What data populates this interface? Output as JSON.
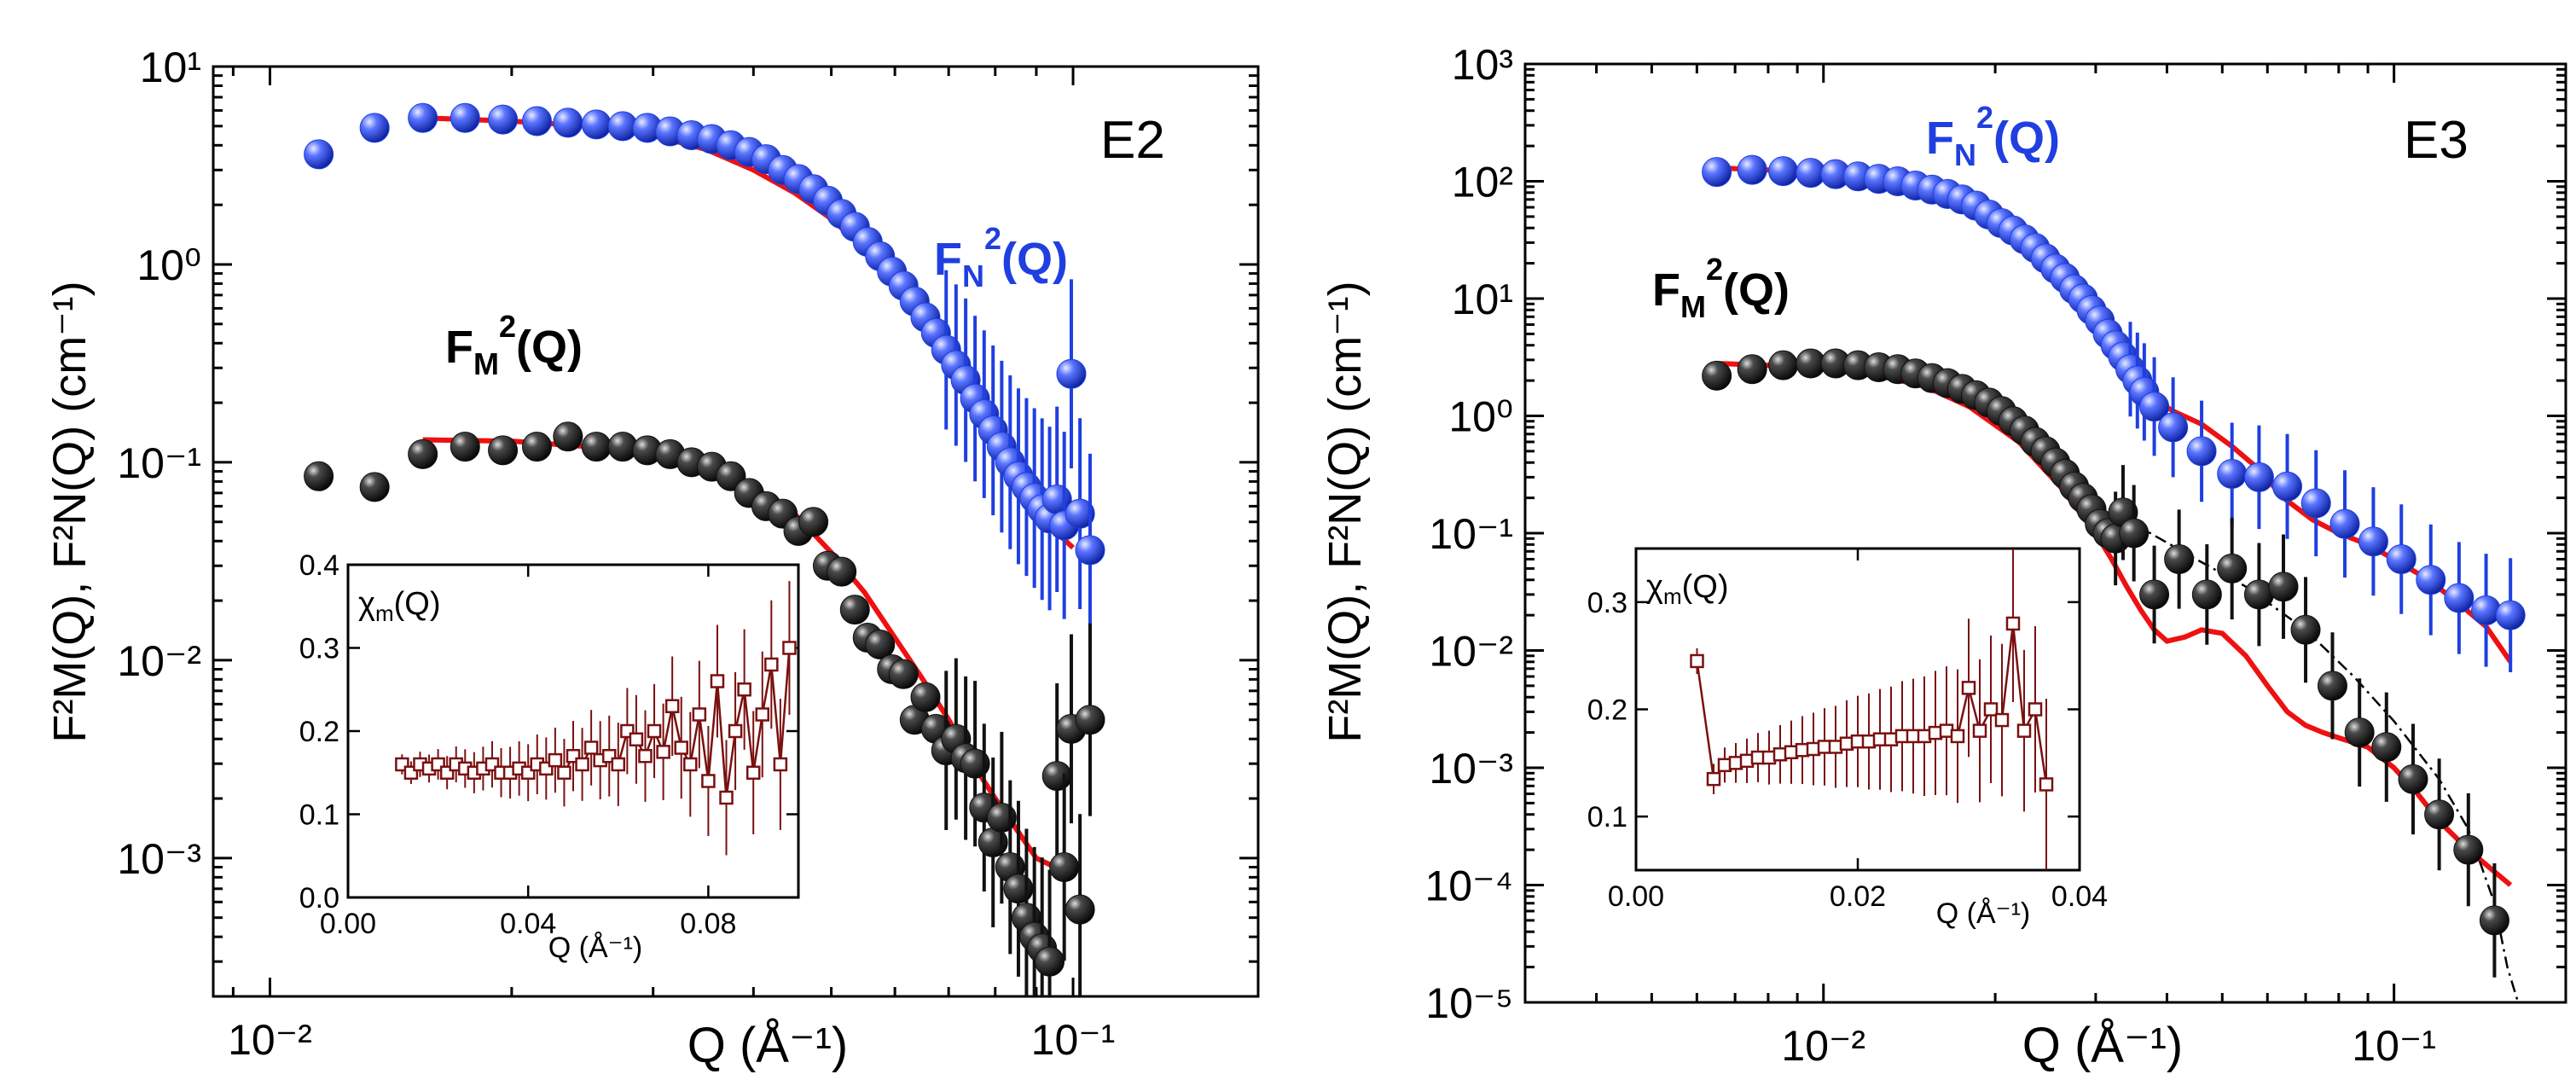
{
  "chart_data": [
    {
      "type": "scatter",
      "panel_label": "E2",
      "xlabel": "Q (Å⁻¹)",
      "ylabel": "F²M(Q), F²N(Q)  (cm⁻¹)",
      "xscale": "log",
      "yscale": "log",
      "xlim": [
        0.0085,
        0.17
      ],
      "ylim": [
        0.0002,
        10
      ],
      "x_ticks": [
        {
          "value": 0.01,
          "label": "10⁻²"
        },
        {
          "value": 0.1,
          "label": "10⁻¹"
        }
      ],
      "y_ticks": [
        {
          "value": 10,
          "label": "10¹"
        },
        {
          "value": 1,
          "label": "10⁰"
        },
        {
          "value": 0.1,
          "label": "10⁻¹"
        },
        {
          "value": 0.01,
          "label": "10⁻²"
        },
        {
          "value": 0.001,
          "label": "10⁻³"
        }
      ],
      "series": [
        {
          "name": "FN²(Q)",
          "label_main": "F",
          "label_sub": "N",
          "label_sup": "2",
          "label_tail": "(Q)",
          "color": "#1f3fe0",
          "marker": "sphere",
          "x": [
            0.0115,
            0.0135,
            0.0155,
            0.0175,
            0.0195,
            0.0215,
            0.0235,
            0.0255,
            0.0275,
            0.0295,
            0.0315,
            0.0335,
            0.0355,
            0.0375,
            0.0395,
            0.0415,
            0.0435,
            0.0455,
            0.0475,
            0.0495,
            0.0515,
            0.0535,
            0.0555,
            0.0575,
            0.0595,
            0.0615,
            0.0635,
            0.0655,
            0.0675,
            0.0695,
            0.0715,
            0.0735,
            0.0755,
            0.0775,
            0.0795,
            0.0815,
            0.0835,
            0.0855,
            0.0875,
            0.0895,
            0.0915,
            0.0935,
            0.0955,
            0.0975,
            0.0995,
            0.102,
            0.105
          ],
          "y": [
            3.6,
            4.9,
            5.5,
            5.5,
            5.4,
            5.3,
            5.2,
            5.1,
            5.0,
            4.9,
            4.7,
            4.5,
            4.3,
            4.0,
            3.7,
            3.4,
            3.0,
            2.7,
            2.4,
            2.1,
            1.8,
            1.55,
            1.3,
            1.1,
            0.92,
            0.78,
            0.65,
            0.54,
            0.45,
            0.37,
            0.31,
            0.26,
            0.21,
            0.175,
            0.145,
            0.12,
            0.1,
            0.085,
            0.075,
            0.066,
            0.058,
            0.052,
            0.065,
            0.048,
            0.28,
            0.055,
            0.036
          ]
        },
        {
          "name": "FM²(Q)",
          "label_main": "F",
          "label_sub": "M",
          "label_sup": "2",
          "label_tail": "(Q)",
          "color": "#111111",
          "marker": "sphere",
          "x": [
            0.0115,
            0.0135,
            0.0155,
            0.0175,
            0.0195,
            0.0215,
            0.0235,
            0.0255,
            0.0275,
            0.0295,
            0.0315,
            0.0335,
            0.0355,
            0.0375,
            0.0395,
            0.0415,
            0.0435,
            0.0455,
            0.0475,
            0.0495,
            0.0515,
            0.0535,
            0.0555,
            0.0575,
            0.0595,
            0.0615,
            0.0635,
            0.0655,
            0.0675,
            0.0695,
            0.0715,
            0.0735,
            0.0755,
            0.0775,
            0.0795,
            0.0815,
            0.0835,
            0.0855,
            0.0875,
            0.0895,
            0.0915,
            0.0935,
            0.0955,
            0.0975,
            0.0995,
            0.102,
            0.105
          ],
          "y": [
            0.085,
            0.075,
            0.11,
            0.12,
            0.115,
            0.12,
            0.135,
            0.12,
            0.12,
            0.115,
            0.11,
            0.1,
            0.095,
            0.085,
            0.07,
            0.06,
            0.055,
            0.045,
            0.05,
            0.03,
            0.028,
            0.018,
            0.013,
            0.012,
            0.009,
            0.0085,
            0.005,
            0.0065,
            0.0045,
            0.0035,
            0.004,
            0.0032,
            0.003,
            0.0018,
            0.0012,
            0.0016,
            0.0009,
            0.0007,
            0.0005,
            0.0004,
            0.00035,
            0.0003,
            0.0026,
            0.0009,
            0.0045,
            0.00055,
            0.005
          ]
        }
      ],
      "fit_color": "#ee1111",
      "fit_lines": [
        {
          "name": "FN² fit",
          "x": [
            0.0155,
            0.02,
            0.025,
            0.03,
            0.035,
            0.04,
            0.045,
            0.05,
            0.055,
            0.06,
            0.065,
            0.07,
            0.075,
            0.08,
            0.085,
            0.09,
            0.095,
            0.1
          ],
          "y": [
            5.5,
            5.3,
            5.0,
            4.5,
            3.8,
            3.0,
            2.3,
            1.7,
            1.2,
            0.85,
            0.55,
            0.35,
            0.22,
            0.14,
            0.09,
            0.06,
            0.045,
            0.037
          ]
        },
        {
          "name": "FM² fit",
          "x": [
            0.0155,
            0.02,
            0.025,
            0.03,
            0.035,
            0.04,
            0.045,
            0.05,
            0.055,
            0.06,
            0.065,
            0.07,
            0.075,
            0.08,
            0.085,
            0.09,
            0.095,
            0.1
          ],
          "y": [
            0.13,
            0.128,
            0.12,
            0.11,
            0.095,
            0.075,
            0.055,
            0.035,
            0.022,
            0.013,
            0.008,
            0.005,
            0.003,
            0.002,
            0.0014,
            0.001,
            0.0009,
            0.0009
          ]
        }
      ],
      "inset": {
        "type": "line",
        "ylabel": "χm(Q)",
        "ylabel_main": "χ",
        "ylabel_sub": "m",
        "ylabel_tail": "(Q)",
        "xlabel": "Q (Å⁻¹)",
        "xlim": [
          0.0,
          0.1
        ],
        "ylim": [
          0.0,
          0.4
        ],
        "x_ticks": [
          {
            "value": 0.0,
            "label": "0.00"
          },
          {
            "value": 0.04,
            "label": "0.04"
          },
          {
            "value": 0.08,
            "label": "0.08"
          }
        ],
        "y_ticks": [
          {
            "value": 0.0,
            "label": "0.0"
          },
          {
            "value": 0.1,
            "label": "0.1"
          },
          {
            "value": 0.2,
            "label": "0.2"
          },
          {
            "value": 0.3,
            "label": "0.3"
          },
          {
            "value": 0.4,
            "label": "0.4"
          }
        ],
        "color": "#7a1010",
        "x": [
          0.012,
          0.014,
          0.016,
          0.018,
          0.02,
          0.022,
          0.024,
          0.026,
          0.028,
          0.03,
          0.032,
          0.034,
          0.036,
          0.038,
          0.04,
          0.042,
          0.044,
          0.046,
          0.048,
          0.05,
          0.052,
          0.054,
          0.056,
          0.058,
          0.06,
          0.062,
          0.064,
          0.066,
          0.068,
          0.07,
          0.072,
          0.074,
          0.076,
          0.078,
          0.08,
          0.082,
          0.084,
          0.086,
          0.088,
          0.09,
          0.092,
          0.094,
          0.096,
          0.098
        ],
        "y": [
          0.16,
          0.15,
          0.16,
          0.155,
          0.16,
          0.15,
          0.16,
          0.155,
          0.15,
          0.155,
          0.16,
          0.15,
          0.15,
          0.155,
          0.15,
          0.16,
          0.155,
          0.165,
          0.15,
          0.17,
          0.16,
          0.18,
          0.165,
          0.17,
          0.16,
          0.2,
          0.19,
          0.17,
          0.2,
          0.175,
          0.23,
          0.18,
          0.16,
          0.22,
          0.14,
          0.26,
          0.12,
          0.2,
          0.25,
          0.15,
          0.22,
          0.28,
          0.16,
          0.3
        ]
      }
    },
    {
      "type": "scatter",
      "panel_label": "E3",
      "xlabel": "Q (Å⁻¹)",
      "ylabel": "F²M(Q), F²N(Q)  (cm⁻¹)",
      "xscale": "log",
      "yscale": "log",
      "xlim": [
        0.003,
        0.2
      ],
      "ylim": [
        1e-05,
        1000
      ],
      "x_ticks": [
        {
          "value": 0.01,
          "label": "10⁻²"
        },
        {
          "value": 0.1,
          "label": "10⁻¹"
        }
      ],
      "y_ticks": [
        {
          "value": 1000,
          "label": "10³"
        },
        {
          "value": 100,
          "label": "10²"
        },
        {
          "value": 10,
          "label": "10¹"
        },
        {
          "value": 1,
          "label": "10⁰"
        },
        {
          "value": 0.1,
          "label": "10⁻¹"
        },
        {
          "value": 0.01,
          "label": "10⁻²"
        },
        {
          "value": 0.001,
          "label": "10⁻³"
        },
        {
          "value": 0.0001,
          "label": "10⁻⁴"
        },
        {
          "value": 1e-05,
          "label": "10⁻⁵"
        }
      ],
      "series": [
        {
          "name": "FN²(Q)",
          "label_main": "F",
          "label_sub": "N",
          "label_sup": "2",
          "label_tail": "(Q)",
          "color": "#1f3fe0",
          "marker": "sphere",
          "x": [
            0.0065,
            0.0075,
            0.0085,
            0.0095,
            0.0105,
            0.0115,
            0.0125,
            0.0135,
            0.0145,
            0.0155,
            0.0165,
            0.0175,
            0.0185,
            0.0195,
            0.0205,
            0.0215,
            0.0225,
            0.0235,
            0.0245,
            0.0255,
            0.0265,
            0.0275,
            0.0285,
            0.0295,
            0.0305,
            0.0315,
            0.0325,
            0.0335,
            0.0345,
            0.0355,
            0.0365,
            0.038,
            0.041,
            0.046,
            0.052,
            0.058,
            0.065,
            0.073,
            0.082,
            0.092,
            0.103,
            0.116,
            0.13,
            0.145,
            0.16
          ],
          "y": [
            120,
            125,
            122,
            118,
            115,
            110,
            105,
            100,
            92,
            85,
            78,
            70,
            62,
            52,
            44,
            38,
            32,
            27,
            22,
            18,
            15,
            12,
            10,
            8,
            6.5,
            5,
            4,
            3.2,
            2.5,
            2,
            1.6,
            1.2,
            0.8,
            0.5,
            0.32,
            0.3,
            0.25,
            0.18,
            0.12,
            0.085,
            0.06,
            0.04,
            0.028,
            0.022,
            0.02
          ]
        },
        {
          "name": "FM²(Q)",
          "label_main": "F",
          "label_sub": "M",
          "label_sup": "2",
          "label_tail": "(Q)",
          "color": "#111111",
          "marker": "sphere",
          "x": [
            0.0065,
            0.0075,
            0.0085,
            0.0095,
            0.0105,
            0.0115,
            0.0125,
            0.0135,
            0.0145,
            0.0155,
            0.0165,
            0.0175,
            0.0185,
            0.0195,
            0.0205,
            0.0215,
            0.0225,
            0.0235,
            0.0245,
            0.0255,
            0.0265,
            0.0275,
            0.0285,
            0.0295,
            0.0305,
            0.0315,
            0.0325,
            0.0335,
            0.035,
            0.038,
            0.042,
            0.047,
            0.052,
            0.058,
            0.064,
            0.07,
            0.078,
            0.087,
            0.097,
            0.108,
            0.12,
            0.135,
            0.15
          ],
          "y": [
            2.2,
            2.5,
            2.7,
            2.8,
            2.8,
            2.7,
            2.6,
            2.5,
            2.3,
            2.1,
            1.9,
            1.7,
            1.5,
            1.3,
            1.1,
            0.9,
            0.75,
            0.6,
            0.5,
            0.4,
            0.32,
            0.25,
            0.2,
            0.16,
            0.12,
            0.1,
            0.09,
            0.15,
            0.1,
            0.03,
            0.06,
            0.03,
            0.05,
            0.03,
            0.035,
            0.015,
            0.005,
            0.002,
            0.0015,
            0.0008,
            0.0004,
            0.0002,
            5e-05
          ]
        }
      ],
      "fit_color": "#ee1111",
      "fit_lines": [
        {
          "name": "FN² fit",
          "x": [
            0.0065,
            0.008,
            0.01,
            0.012,
            0.015,
            0.018,
            0.022,
            0.026,
            0.03,
            0.034,
            0.037,
            0.041,
            0.046,
            0.052,
            0.058,
            0.064,
            0.072,
            0.08,
            0.09,
            0.1,
            0.115,
            0.13,
            0.145,
            0.16
          ],
          "y": [
            130,
            125,
            115,
            100,
            80,
            55,
            30,
            14,
            6,
            2.5,
            1.5,
            1.1,
            0.85,
            0.55,
            0.35,
            0.2,
            0.13,
            0.1,
            0.08,
            0.06,
            0.04,
            0.025,
            0.016,
            0.008
          ]
        },
        {
          "name": "FM² fit",
          "x": [
            0.0065,
            0.008,
            0.01,
            0.012,
            0.015,
            0.018,
            0.022,
            0.026,
            0.03,
            0.032,
            0.034,
            0.036,
            0.038,
            0.04,
            0.043,
            0.046,
            0.05,
            0.055,
            0.06,
            0.065,
            0.07,
            0.075,
            0.08,
            0.09,
            0.1,
            0.11,
            0.12,
            0.135,
            0.15,
            0.16
          ],
          "y": [
            2.8,
            2.7,
            2.55,
            2.3,
            1.8,
            1.2,
            0.6,
            0.25,
            0.1,
            0.06,
            0.035,
            0.022,
            0.015,
            0.012,
            0.013,
            0.015,
            0.014,
            0.009,
            0.005,
            0.003,
            0.0023,
            0.002,
            0.0018,
            0.0015,
            0.001,
            0.0006,
            0.00035,
            0.0002,
            0.00013,
            0.0001
          ]
        },
        {
          "name": "FM² guide (dash-dot)",
          "style": "dashdot",
          "x": [
            0.035,
            0.045,
            0.055,
            0.07,
            0.085,
            0.1,
            0.12,
            0.135,
            0.15,
            0.158,
            0.165
          ],
          "y": [
            0.12,
            0.06,
            0.035,
            0.015,
            0.006,
            0.0025,
            0.0008,
            0.0003,
            7e-05,
            2e-05,
            8e-06
          ]
        }
      ],
      "inset": {
        "type": "line",
        "ylabel": "χm(Q)",
        "ylabel_main": "χ",
        "ylabel_sub": "m",
        "ylabel_tail": "(Q)",
        "xlabel": "Q (Å⁻¹)",
        "xlim": [
          0.0,
          0.04
        ],
        "ylim": [
          0.05,
          0.35
        ],
        "x_ticks": [
          {
            "value": 0.0,
            "label": "0.00"
          },
          {
            "value": 0.02,
            "label": "0.02"
          },
          {
            "value": 0.04,
            "label": "0.04"
          }
        ],
        "y_ticks": [
          {
            "value": 0.1,
            "label": "0.1"
          },
          {
            "value": 0.2,
            "label": "0.2"
          },
          {
            "value": 0.3,
            "label": "0.3"
          }
        ],
        "color": "#7a1010",
        "x": [
          0.0055,
          0.007,
          0.008,
          0.009,
          0.01,
          0.011,
          0.012,
          0.013,
          0.014,
          0.015,
          0.016,
          0.017,
          0.018,
          0.019,
          0.02,
          0.021,
          0.022,
          0.023,
          0.024,
          0.025,
          0.026,
          0.027,
          0.028,
          0.029,
          0.03,
          0.031,
          0.032,
          0.033,
          0.034,
          0.035,
          0.036,
          0.037
        ],
        "y": [
          0.245,
          0.135,
          0.148,
          0.15,
          0.152,
          0.155,
          0.155,
          0.158,
          0.16,
          0.162,
          0.163,
          0.165,
          0.165,
          0.168,
          0.17,
          0.17,
          0.172,
          0.172,
          0.175,
          0.175,
          0.175,
          0.178,
          0.18,
          0.175,
          0.22,
          0.18,
          0.2,
          0.19,
          0.28,
          0.18,
          0.2,
          0.13
        ]
      }
    }
  ]
}
